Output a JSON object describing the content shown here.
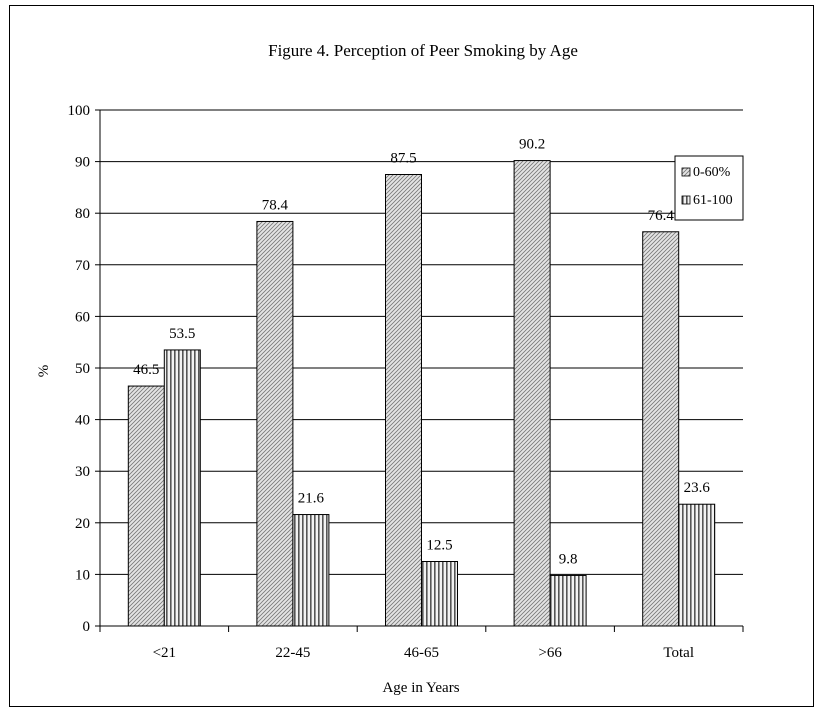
{
  "chart_data": {
    "type": "bar",
    "title": "Figure 4.  Perception of Peer Smoking by Age",
    "xlabel": "Age in Years",
    "ylabel": "%",
    "ylim": [
      0,
      100
    ],
    "yticks": [
      "0",
      "10",
      "20",
      "30",
      "40",
      "50",
      "60",
      "70",
      "80",
      "90",
      "100"
    ],
    "categories": [
      "<21",
      "22-45",
      "46-65",
      ">66",
      "Total"
    ],
    "grid": true,
    "legend_position": "top-right",
    "series": [
      {
        "name": "0-60%",
        "values": [
          46.5,
          78.4,
          87.5,
          90.2,
          76.4
        ],
        "labels": [
          "46.5",
          "78.4",
          "87.5",
          "90.2",
          "76.4"
        ],
        "pattern": "diagonal-hatch"
      },
      {
        "name": "61-100",
        "values": [
          53.5,
          21.6,
          12.5,
          9.8,
          23.6
        ],
        "labels": [
          "53.5",
          "21.6",
          "12.5",
          "9.8",
          "23.6"
        ],
        "pattern": "vertical-stripe"
      }
    ]
  },
  "colors": {
    "bar_fill": "#d9d9d9",
    "stroke": "#000000",
    "gridline": "#000000"
  }
}
